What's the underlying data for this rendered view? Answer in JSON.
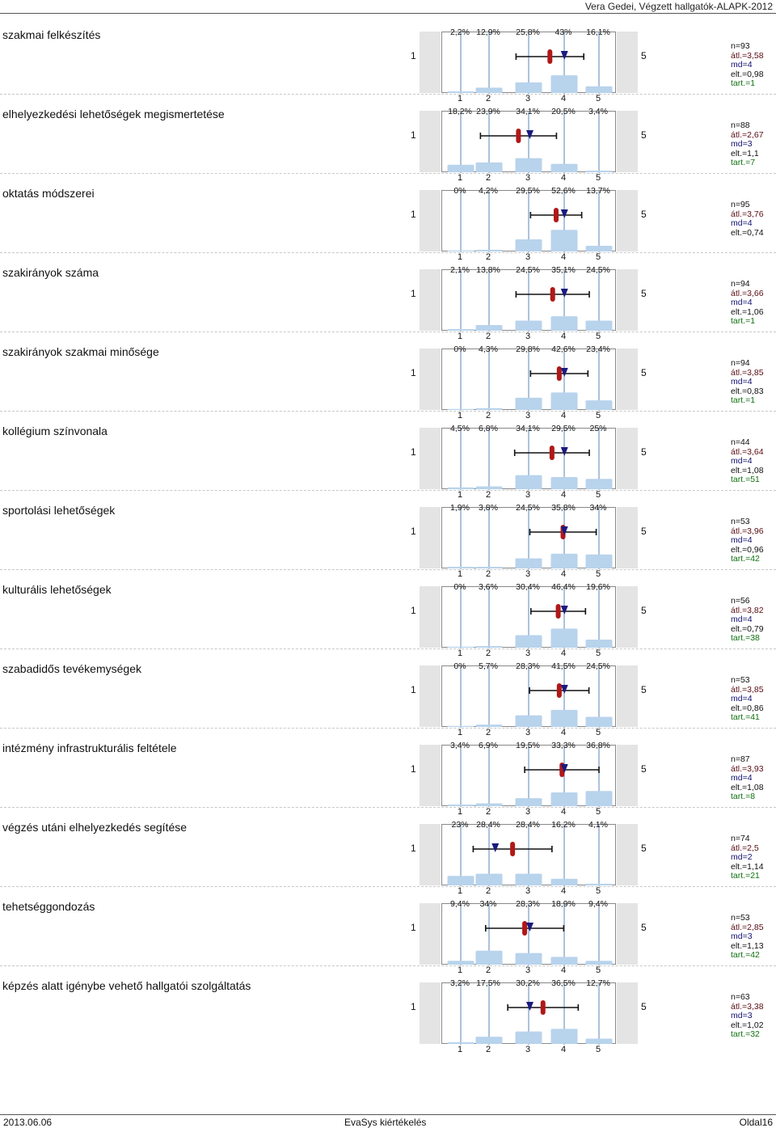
{
  "header": {
    "title": "Vera Gedei, Végzett hallgatók-ALAPK-2012"
  },
  "scale": {
    "left": "1",
    "right": "5",
    "ticks": [
      "1",
      "2",
      "3",
      "4",
      "5"
    ]
  },
  "colors": {
    "bar": "#b8d3ec",
    "gridline": "#5b86b6",
    "mean_marker": "#b01818",
    "median_marker": "#1a1a80",
    "range": "#111111"
  },
  "items": [
    {
      "label": "szakmai felkészítés",
      "percents": [
        "2,2%",
        "12,9%",
        "25,8%",
        "43%",
        "16,1%"
      ],
      "values": [
        2.2,
        12.9,
        25.8,
        43,
        16.1
      ],
      "mean": 3.58,
      "median": 4,
      "sd": 0.98,
      "stats": {
        "n": "n=93",
        "mean": "átl.=3,58",
        "md": "md=4",
        "dev": "elt.=0,98",
        "abst": "tart.=1"
      }
    },
    {
      "label": "elhelyezkedési lehetőségek megismertetése",
      "percents": [
        "18,2%",
        "23,9%",
        "34,1%",
        "20,5%",
        "3,4%"
      ],
      "values": [
        18.2,
        23.9,
        34.1,
        20.5,
        3.4
      ],
      "mean": 2.67,
      "median": 3,
      "sd": 1.1,
      "stats": {
        "n": "n=88",
        "mean": "átl.=2,67",
        "md": "md=3",
        "dev": "elt.=1,1",
        "abst": "tart.=7"
      }
    },
    {
      "label": "oktatás módszerei",
      "percents": [
        "0%",
        "4,2%",
        "29,5%",
        "52,6%",
        "13,7%"
      ],
      "values": [
        0,
        4.2,
        29.5,
        52.6,
        13.7
      ],
      "mean": 3.76,
      "median": 4,
      "sd": 0.74,
      "stats": {
        "n": "n=95",
        "mean": "átl.=3,76",
        "md": "md=4",
        "dev": "elt.=0,74",
        "abst": ""
      }
    },
    {
      "label": "szakirányok száma",
      "percents": [
        "2,1%",
        "13,8%",
        "24,5%",
        "35,1%",
        "24,5%"
      ],
      "values": [
        2.1,
        13.8,
        24.5,
        35.1,
        24.5
      ],
      "mean": 3.66,
      "median": 4,
      "sd": 1.06,
      "stats": {
        "n": "n=94",
        "mean": "átl.=3,66",
        "md": "md=4",
        "dev": "elt.=1,06",
        "abst": "tart.=1"
      }
    },
    {
      "label": "szakirányok szakmai minősége",
      "percents": [
        "0%",
        "4,3%",
        "29,8%",
        "42,6%",
        "23,4%"
      ],
      "values": [
        0,
        4.3,
        29.8,
        42.6,
        23.4
      ],
      "mean": 3.85,
      "median": 4,
      "sd": 0.83,
      "stats": {
        "n": "n=94",
        "mean": "átl.=3,85",
        "md": "md=4",
        "dev": "elt.=0,83",
        "abst": "tart.=1"
      }
    },
    {
      "label": "kollégium színvonala",
      "percents": [
        "4,5%",
        "6,8%",
        "34,1%",
        "29,5%",
        "25%"
      ],
      "values": [
        4.5,
        6.8,
        34.1,
        29.5,
        25
      ],
      "mean": 3.64,
      "median": 4,
      "sd": 1.08,
      "stats": {
        "n": "n=44",
        "mean": "átl.=3,64",
        "md": "md=4",
        "dev": "elt.=1,08",
        "abst": "tart.=51"
      }
    },
    {
      "label": "sportolási lehetőségek",
      "percents": [
        "1,9%",
        "3,8%",
        "24,5%",
        "35,8%",
        "34%"
      ],
      "values": [
        1.9,
        3.8,
        24.5,
        35.8,
        34
      ],
      "mean": 3.96,
      "median": 4,
      "sd": 0.96,
      "stats": {
        "n": "n=53",
        "mean": "átl.=3,96",
        "md": "md=4",
        "dev": "elt.=0,96",
        "abst": "tart.=42"
      }
    },
    {
      "label": "kulturális lehetőségek",
      "percents": [
        "0%",
        "3,6%",
        "30,4%",
        "46,4%",
        "19,6%"
      ],
      "values": [
        0,
        3.6,
        30.4,
        46.4,
        19.6
      ],
      "mean": 3.82,
      "median": 4,
      "sd": 0.79,
      "stats": {
        "n": "n=56",
        "mean": "átl.=3,82",
        "md": "md=4",
        "dev": "elt.=0,79",
        "abst": "tart.=38"
      }
    },
    {
      "label": "szabadidős tevékemységek",
      "percents": [
        "0%",
        "5,7%",
        "28,3%",
        "41,5%",
        "24,5%"
      ],
      "values": [
        0,
        5.7,
        28.3,
        41.5,
        24.5
      ],
      "mean": 3.85,
      "median": 4,
      "sd": 0.86,
      "stats": {
        "n": "n=53",
        "mean": "átl.=3,85",
        "md": "md=4",
        "dev": "elt.=0,86",
        "abst": "tart.=41"
      }
    },
    {
      "label": "intézmény infrastrukturális feltétele",
      "percents": [
        "3,4%",
        "6,9%",
        "19,5%",
        "33,3%",
        "36,8%"
      ],
      "values": [
        3.4,
        6.9,
        19.5,
        33.3,
        36.8
      ],
      "mean": 3.93,
      "median": 4,
      "sd": 1.08,
      "stats": {
        "n": "n=87",
        "mean": "átl.=3,93",
        "md": "md=4",
        "dev": "elt.=1,08",
        "abst": "tart.=8"
      }
    },
    {
      "label": "végzés utáni elhelyezkedés segítése",
      "percents": [
        "23%",
        "28,4%",
        "28,4%",
        "16,2%",
        "4,1%"
      ],
      "values": [
        23,
        28.4,
        28.4,
        16.2,
        4.1
      ],
      "mean": 2.5,
      "median": 2,
      "sd": 1.14,
      "stats": {
        "n": "n=74",
        "mean": "átl.=2,5",
        "md": "md=2",
        "dev": "elt.=1,14",
        "abst": "tart.=21"
      }
    },
    {
      "label": "tehetséggondozás",
      "percents": [
        "9,4%",
        "34%",
        "28,3%",
        "18,9%",
        "9,4%"
      ],
      "values": [
        9.4,
        34,
        28.3,
        18.9,
        9.4
      ],
      "mean": 2.85,
      "median": 3,
      "sd": 1.13,
      "stats": {
        "n": "n=53",
        "mean": "átl.=2,85",
        "md": "md=3",
        "dev": "elt.=1,13",
        "abst": "tart.=42"
      }
    },
    {
      "label": "képzés alatt igénybe vehető hallgatói szolgáltatás",
      "percents": [
        "3,2%",
        "17,5%",
        "30,2%",
        "36,5%",
        "12,7%"
      ],
      "values": [
        3.2,
        17.5,
        30.2,
        36.5,
        12.7
      ],
      "mean": 3.38,
      "median": 3,
      "sd": 1.02,
      "stats": {
        "n": "n=63",
        "mean": "átl.=3,38",
        "md": "md=3",
        "dev": "elt.=1,02",
        "abst": "tart.=32"
      }
    }
  ],
  "footer": {
    "date": "2013.06.06",
    "center": "EvaSys kiértékelés",
    "page": "Oldal16"
  }
}
